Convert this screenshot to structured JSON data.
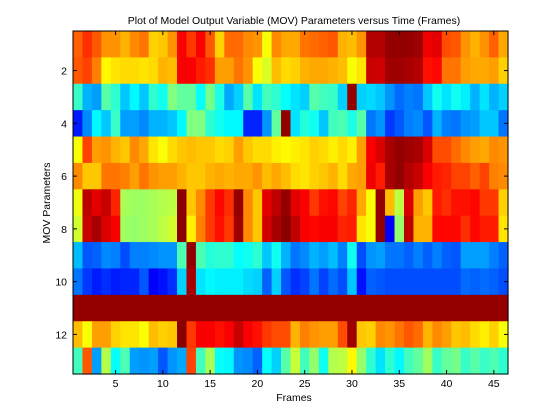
{
  "chart_data": {
    "type": "heatmap",
    "title": "Plot of Model Output Variable (MOV) Parameters versus Time (Frames)",
    "xlabel": "Frames",
    "ylabel": "MOV Parameters",
    "xlim": [
      0.5,
      46.5
    ],
    "ylim": [
      0.5,
      13.5
    ],
    "x_ticks": [
      5,
      10,
      15,
      20,
      25,
      30,
      35,
      40,
      45
    ],
    "y_ticks": [
      2,
      4,
      6,
      8,
      10,
      12
    ],
    "y_reversed": true,
    "colormap": "jet",
    "value_range": [
      0,
      1
    ],
    "grid": false,
    "rows": 13,
    "cols": 46,
    "values": [
      [
        0.78,
        0.83,
        0.79,
        0.73,
        0.73,
        0.7,
        0.74,
        0.76,
        0.67,
        0.68,
        0.73,
        0.88,
        0.82,
        0.88,
        0.79,
        0.67,
        0.77,
        0.77,
        0.74,
        0.73,
        0.62,
        0.74,
        0.71,
        0.71,
        0.76,
        0.77,
        0.78,
        0.79,
        0.7,
        0.69,
        0.73,
        0.95,
        0.95,
        0.98,
        0.98,
        0.98,
        0.97,
        0.89,
        0.9,
        0.8,
        0.79,
        0.73,
        0.7,
        0.73,
        0.78,
        0.71
      ],
      [
        0.79,
        0.81,
        0.75,
        0.63,
        0.65,
        0.66,
        0.66,
        0.65,
        0.66,
        0.7,
        0.69,
        0.88,
        0.88,
        0.85,
        0.83,
        0.72,
        0.72,
        0.76,
        0.73,
        0.62,
        0.59,
        0.69,
        0.66,
        0.67,
        0.7,
        0.71,
        0.71,
        0.7,
        0.69,
        0.62,
        0.65,
        0.93,
        0.92,
        0.97,
        0.97,
        0.96,
        0.95,
        0.86,
        0.87,
        0.76,
        0.76,
        0.72,
        0.71,
        0.71,
        0.72,
        0.67
      ],
      [
        0.43,
        0.3,
        0.28,
        0.46,
        0.42,
        0.32,
        0.37,
        0.32,
        0.42,
        0.39,
        0.5,
        0.47,
        0.47,
        0.38,
        0.49,
        0.4,
        0.29,
        0.33,
        0.46,
        0.35,
        0.44,
        0.42,
        0.38,
        0.35,
        0.33,
        0.46,
        0.44,
        0.43,
        0.33,
        0.98,
        0.33,
        0.34,
        0.32,
        0.27,
        0.23,
        0.25,
        0.24,
        0.32,
        0.39,
        0.35,
        0.39,
        0.36,
        0.3,
        0.35,
        0.3,
        0.33
      ],
      [
        0.15,
        0.26,
        0.37,
        0.32,
        0.43,
        0.28,
        0.28,
        0.26,
        0.3,
        0.3,
        0.32,
        0.37,
        0.5,
        0.5,
        0.42,
        0.39,
        0.37,
        0.37,
        0.16,
        0.16,
        0.27,
        0.47,
        0.98,
        0.35,
        0.41,
        0.39,
        0.32,
        0.44,
        0.45,
        0.4,
        0.46,
        0.24,
        0.27,
        0.18,
        0.21,
        0.25,
        0.26,
        0.21,
        0.3,
        0.25,
        0.24,
        0.27,
        0.28,
        0.32,
        0.32,
        0.24
      ],
      [
        0.62,
        0.81,
        0.72,
        0.73,
        0.7,
        0.68,
        0.74,
        0.71,
        0.65,
        0.62,
        0.66,
        0.68,
        0.69,
        0.68,
        0.68,
        0.66,
        0.67,
        0.72,
        0.68,
        0.66,
        0.66,
        0.64,
        0.63,
        0.64,
        0.65,
        0.67,
        0.66,
        0.64,
        0.66,
        0.64,
        0.72,
        0.88,
        0.91,
        0.96,
        0.98,
        0.97,
        0.96,
        0.91,
        0.8,
        0.8,
        0.77,
        0.74,
        0.72,
        0.71,
        0.74,
        0.73
      ],
      [
        0.74,
        0.68,
        0.68,
        0.76,
        0.76,
        0.75,
        0.72,
        0.76,
        0.73,
        0.72,
        0.72,
        0.7,
        0.68,
        0.68,
        0.7,
        0.71,
        0.7,
        0.71,
        0.71,
        0.73,
        0.69,
        0.71,
        0.69,
        0.66,
        0.65,
        0.67,
        0.68,
        0.7,
        0.66,
        0.71,
        0.72,
        0.89,
        0.85,
        0.96,
        0.98,
        0.95,
        0.93,
        0.88,
        0.85,
        0.84,
        0.81,
        0.81,
        0.78,
        0.81,
        0.75,
        0.74
      ],
      [
        0.61,
        0.94,
        0.9,
        0.93,
        0.84,
        0.54,
        0.53,
        0.53,
        0.54,
        0.55,
        0.56,
        0.99,
        0.68,
        0.74,
        0.82,
        0.87,
        0.83,
        0.98,
        0.74,
        0.68,
        0.9,
        0.94,
        0.98,
        0.9,
        0.88,
        0.82,
        0.86,
        0.87,
        0.81,
        0.84,
        0.71,
        0.62,
        0.98,
        0.69,
        0.56,
        0.91,
        0.72,
        0.68,
        0.85,
        0.83,
        0.86,
        0.86,
        0.87,
        0.82,
        0.82,
        0.67
      ],
      [
        0.58,
        0.93,
        0.96,
        0.91,
        0.88,
        0.53,
        0.52,
        0.53,
        0.54,
        0.56,
        0.58,
        0.99,
        0.64,
        0.75,
        0.82,
        0.86,
        0.82,
        0.97,
        0.74,
        0.68,
        0.92,
        0.96,
        0.99,
        0.94,
        0.88,
        0.87,
        0.88,
        0.88,
        0.84,
        0.85,
        0.65,
        0.62,
        0.98,
        0.12,
        0.52,
        0.94,
        0.7,
        0.7,
        0.87,
        0.87,
        0.87,
        0.83,
        0.87,
        0.85,
        0.85,
        0.65
      ],
      [
        0.31,
        0.21,
        0.22,
        0.26,
        0.25,
        0.2,
        0.25,
        0.25,
        0.26,
        0.27,
        0.27,
        0.45,
        0.98,
        0.45,
        0.41,
        0.42,
        0.42,
        0.38,
        0.39,
        0.42,
        0.32,
        0.39,
        0.3,
        0.24,
        0.26,
        0.3,
        0.28,
        0.31,
        0.25,
        0.39,
        0.2,
        0.27,
        0.28,
        0.24,
        0.24,
        0.22,
        0.25,
        0.22,
        0.25,
        0.22,
        0.21,
        0.28,
        0.28,
        0.28,
        0.25,
        0.22
      ],
      [
        0.24,
        0.18,
        0.15,
        0.17,
        0.15,
        0.16,
        0.16,
        0.21,
        0.12,
        0.14,
        0.17,
        0.33,
        0.96,
        0.35,
        0.37,
        0.36,
        0.36,
        0.36,
        0.34,
        0.33,
        0.22,
        0.33,
        0.21,
        0.17,
        0.19,
        0.24,
        0.19,
        0.23,
        0.2,
        0.32,
        0.14,
        0.22,
        0.21,
        0.2,
        0.2,
        0.2,
        0.2,
        0.2,
        0.2,
        0.2,
        0.2,
        0.23,
        0.22,
        0.23,
        0.22,
        0.2
      ],
      [
        0.98,
        0.98,
        0.98,
        0.98,
        0.98,
        0.98,
        0.98,
        0.98,
        0.98,
        0.98,
        0.98,
        0.98,
        0.98,
        0.98,
        0.98,
        0.98,
        0.98,
        0.98,
        0.98,
        0.98,
        0.98,
        0.98,
        0.98,
        0.98,
        0.98,
        0.98,
        0.98,
        0.98,
        0.98,
        0.98,
        0.98,
        0.98,
        0.98,
        0.98,
        0.98,
        0.98,
        0.98,
        0.98,
        0.98,
        0.98,
        0.98,
        0.98,
        0.98,
        0.98,
        0.98,
        0.98
      ],
      [
        0.69,
        0.62,
        0.72,
        0.72,
        0.67,
        0.65,
        0.65,
        0.62,
        0.69,
        0.67,
        0.68,
        0.99,
        0.82,
        0.88,
        0.88,
        0.86,
        0.88,
        0.93,
        0.88,
        0.86,
        0.82,
        0.8,
        0.8,
        0.7,
        0.75,
        0.73,
        0.72,
        0.72,
        0.8,
        0.97,
        0.68,
        0.67,
        0.74,
        0.73,
        0.76,
        0.79,
        0.77,
        0.7,
        0.74,
        0.72,
        0.68,
        0.69,
        0.66,
        0.64,
        0.67,
        0.62
      ],
      [
        0.44,
        0.79,
        0.28,
        0.55,
        0.38,
        0.45,
        0.28,
        0.27,
        0.28,
        0.21,
        0.27,
        0.29,
        0.81,
        0.44,
        0.54,
        0.38,
        0.37,
        0.27,
        0.26,
        0.22,
        0.38,
        0.33,
        0.46,
        0.57,
        0.44,
        0.52,
        0.39,
        0.55,
        0.56,
        0.63,
        0.52,
        0.42,
        0.35,
        0.42,
        0.37,
        0.44,
        0.47,
        0.53,
        0.43,
        0.47,
        0.49,
        0.43,
        0.46,
        0.43,
        0.45,
        0.42
      ]
    ]
  }
}
